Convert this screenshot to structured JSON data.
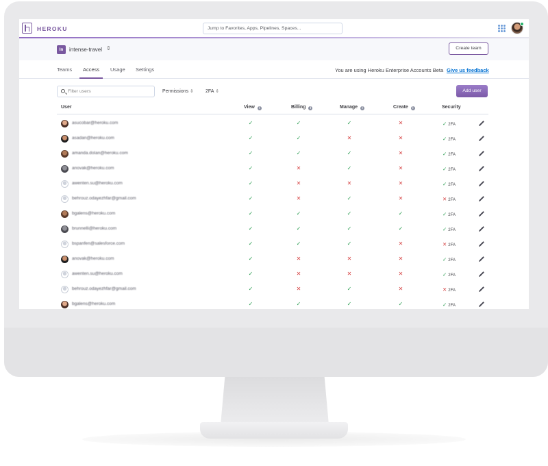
{
  "app": {
    "brand": "HEROKU",
    "search_placeholder": "Jump to Favorites, Apps, Pipelines, Spaces..."
  },
  "team": {
    "badge": "In",
    "name": "intense-travel",
    "create_button": "Create team"
  },
  "tabs": [
    {
      "label": "Teams",
      "active": false
    },
    {
      "label": "Access",
      "active": true
    },
    {
      "label": "Usage",
      "active": false
    },
    {
      "label": "Settings",
      "active": false
    }
  ],
  "beta": {
    "text": "You are using Heroku Enterprise Accounts Beta",
    "link": "Give us feedback"
  },
  "filters": {
    "search_placeholder": "Filter users",
    "permissions_label": "Permissions",
    "twofa_label": "2FA",
    "add_button": "Add user"
  },
  "table": {
    "columns": [
      "User",
      "View",
      "Billing",
      "Manage",
      "Create",
      "Security"
    ],
    "rows": [
      {
        "email": "asucobar@heroku.com",
        "view": true,
        "billing": true,
        "manage": true,
        "create": false,
        "twofa": true,
        "avatar": "photo"
      },
      {
        "email": "asadan@heroku.com",
        "view": true,
        "billing": true,
        "manage": false,
        "create": false,
        "twofa": true,
        "avatar": "photo"
      },
      {
        "email": "amanda.dolan@heroku.com",
        "view": true,
        "billing": true,
        "manage": true,
        "create": false,
        "twofa": true,
        "avatar": "photo"
      },
      {
        "email": "anovak@heroku.com",
        "view": true,
        "billing": false,
        "manage": true,
        "create": false,
        "twofa": true,
        "avatar": "photo"
      },
      {
        "email": "awenten.su@heroku.com",
        "view": true,
        "billing": false,
        "manage": false,
        "create": false,
        "twofa": true,
        "avatar": "placeholder"
      },
      {
        "email": "behrouz.odayezhfar@gmail.com",
        "view": true,
        "billing": false,
        "manage": true,
        "create": false,
        "twofa": false,
        "avatar": "placeholder"
      },
      {
        "email": "bgalens@heroku.com",
        "view": true,
        "billing": true,
        "manage": true,
        "create": true,
        "twofa": true,
        "avatar": "photo"
      },
      {
        "email": "brunnelli@heroku.com",
        "view": true,
        "billing": true,
        "manage": true,
        "create": true,
        "twofa": true,
        "avatar": "photo"
      },
      {
        "email": "bspanfen@salesforce.com",
        "view": true,
        "billing": true,
        "manage": true,
        "create": false,
        "twofa": false,
        "avatar": "placeholder"
      },
      {
        "email": "anovak@heroku.com",
        "view": true,
        "billing": false,
        "manage": false,
        "create": false,
        "twofa": true,
        "avatar": "photo"
      },
      {
        "email": "awenten.su@heroku.com",
        "view": true,
        "billing": false,
        "manage": false,
        "create": false,
        "twofa": true,
        "avatar": "placeholder"
      },
      {
        "email": "behrouz.odayezhfar@gmail.com",
        "view": true,
        "billing": false,
        "manage": true,
        "create": false,
        "twofa": false,
        "avatar": "placeholder"
      },
      {
        "email": "bgalens@heroku.com",
        "view": true,
        "billing": true,
        "manage": true,
        "create": true,
        "twofa": true,
        "avatar": "photo"
      }
    ],
    "security_label": "2FA"
  },
  "colors": {
    "brand": "#79589f",
    "ok": "#2c9e52",
    "no": "#d64545",
    "link": "#0070d2"
  }
}
